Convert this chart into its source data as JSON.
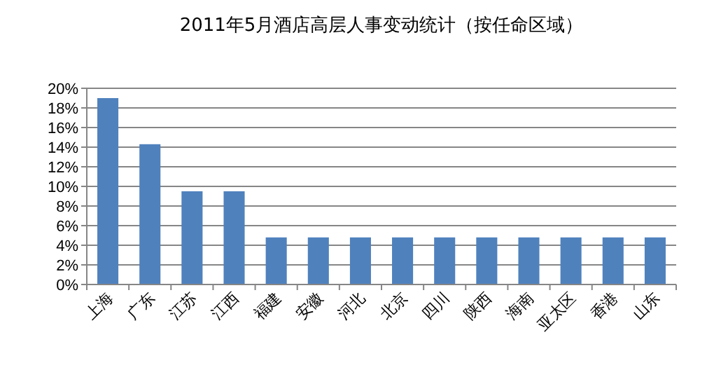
{
  "chart_data": {
    "type": "bar",
    "title": "2011年5月酒店高层人事变动统计（按任命区域）",
    "categories": [
      "上海",
      "广东",
      "江苏",
      "江西",
      "福建",
      "安徽",
      "河北",
      "北京",
      "四川",
      "陕西",
      "海南",
      "亚太区",
      "香港",
      "山东"
    ],
    "values": [
      19.0,
      14.3,
      9.5,
      9.5,
      4.8,
      4.8,
      4.8,
      4.8,
      4.8,
      4.8,
      4.8,
      4.8,
      4.8,
      4.8
    ],
    "color": "#4f81bd",
    "ylim": [
      0,
      20
    ],
    "yticks": [
      {
        "value": 0,
        "label": "0%"
      },
      {
        "value": 2,
        "label": "2%"
      },
      {
        "value": 4,
        "label": "4%"
      },
      {
        "value": 6,
        "label": "6%"
      },
      {
        "value": 8,
        "label": "8%"
      },
      {
        "value": 10,
        "label": "10%"
      },
      {
        "value": 12,
        "label": "12%"
      },
      {
        "value": 14,
        "label": "14%"
      },
      {
        "value": 16,
        "label": "16%"
      },
      {
        "value": 18,
        "label": "18%"
      },
      {
        "value": 20,
        "label": "20%"
      }
    ],
    "grid": "y"
  }
}
